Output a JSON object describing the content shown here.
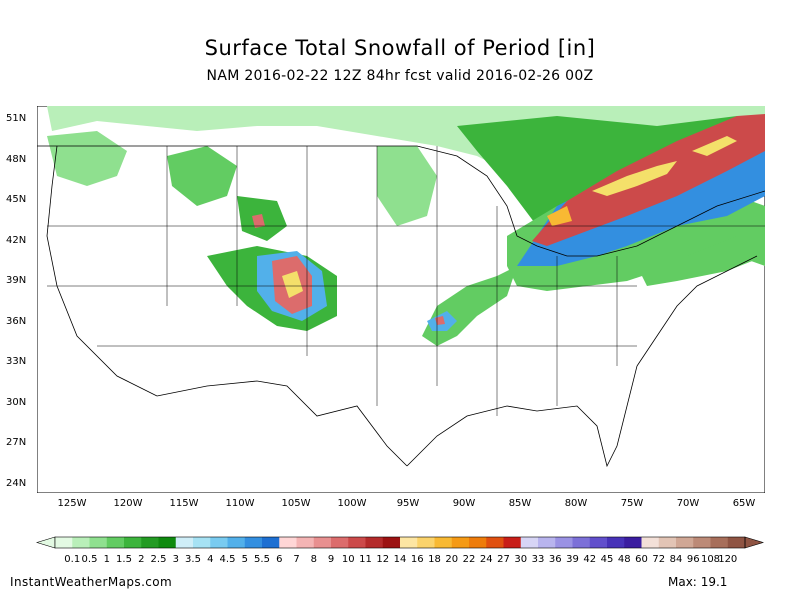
{
  "title": "Surface Total Snowfall of Period [in]",
  "subtitle": "NAM 2016-02-22 12Z 84hr fcst valid 2016-02-26 00Z",
  "latitude_labels": [
    "51N",
    "48N",
    "45N",
    "42N",
    "39N",
    "36N",
    "33N",
    "30N",
    "27N",
    "24N"
  ],
  "longitude_labels": [
    "125W",
    "120W",
    "115W",
    "110W",
    "105W",
    "100W",
    "95W",
    "90W",
    "85W",
    "80W",
    "75W",
    "70W",
    "65W"
  ],
  "colorbar": {
    "labels": [
      "0.1",
      "0.5",
      "1",
      "1.5",
      "2",
      "2.5",
      "3",
      "3.5",
      "4",
      "4.5",
      "5",
      "5.5",
      "6",
      "7",
      "8",
      "9",
      "10",
      "11",
      "12",
      "14",
      "16",
      "18",
      "20",
      "22",
      "24",
      "27",
      "30",
      "33",
      "36",
      "39",
      "42",
      "45",
      "48",
      "60",
      "72",
      "84",
      "96",
      "108",
      "120"
    ],
    "colors": [
      "#e3fae3",
      "#b9efb9",
      "#8fe08f",
      "#62cc62",
      "#3cb43c",
      "#239b23",
      "#0f8a0f",
      "#cfeef8",
      "#a6e2f4",
      "#79cbf0",
      "#52b0ea",
      "#338fe0",
      "#1d6fd2",
      "#ffd6d6",
      "#f4b4b4",
      "#e89090",
      "#dc6c6c",
      "#cc4a4a",
      "#b42b2b",
      "#9c1212",
      "#fde6a3",
      "#fbd36b",
      "#f8b933",
      "#f59a15",
      "#ee7c0b",
      "#e05010",
      "#c81e18",
      "#d7d5f5",
      "#b8b4ee",
      "#9a92e4",
      "#7c70d8",
      "#614fcc",
      "#4732b8",
      "#3a1da0",
      "#f3e0d8",
      "#e2c4b5",
      "#d0a795",
      "#bc8a77",
      "#a76e5a",
      "#8f5443"
    ]
  },
  "footer": {
    "source": "InstantWeatherMaps.com",
    "max_label": "Max:",
    "max_value": "19.1"
  },
  "legend_colors": {
    "green": "#21a421",
    "light_green": "#9be39b",
    "blue": "#3f86e6",
    "red": "#d23a3a",
    "yellow": "#f4e06a",
    "purple": "#7b5cd0"
  }
}
